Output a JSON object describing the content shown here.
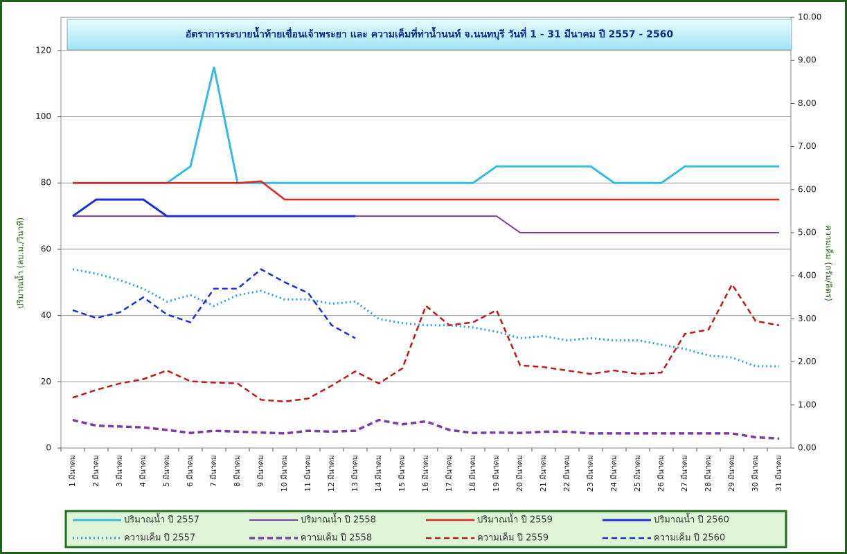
{
  "chart_data": {
    "type": "line",
    "title": "อัตราการระบายน้ำท้ายเขื่อนเจ้าพระยา และ ความเค็มที่ท่าน้ำนนท์ จ.นนทบุรี วันที่ 1 - 31 มีนาคม ปี 2557 - 2560",
    "y_label": "ปริมาณน้ำ (ลบ.ม./วินาที)",
    "y2_label": "ความเค็ม (กรัม/ลิตร)",
    "categories": [
      "1 มีนาคม",
      "2 มีนาคม",
      "3 มีนาคม",
      "4 มีนาคม",
      "5 มีนาคม",
      "6 มีนาคม",
      "7 มีนาคม",
      "8 มีนาคม",
      "9 มีนาคม",
      "10 มีนาคม",
      "11 มีนาคม",
      "12 มีนาคม",
      "13 มีนาคม",
      "14 มีนาคม",
      "15 มีนาคม",
      "16 มีนาคม",
      "17 มีนาคม",
      "18 มีนาคม",
      "19 มีนาคม",
      "20 มีนาคม",
      "21 มีนาคม",
      "22 มีนาคม",
      "23 มีนาคม",
      "24 มีนาคม",
      "25 มีนาคม",
      "26 มีนาคม",
      "27 มีนาคม",
      "28 มีนาคม",
      "29 มีนาคม",
      "30 มีนาคม",
      "31 มีนาคม"
    ],
    "ylim": [
      0,
      130
    ],
    "yticks": [
      0,
      20,
      40,
      60,
      80,
      100,
      120
    ],
    "y2lim": [
      0,
      10
    ],
    "y2ticks": [
      {
        "value": 0,
        "label": "0.00"
      },
      {
        "value": 1,
        "label": "1.00"
      },
      {
        "value": 2,
        "label": "2.00"
      },
      {
        "value": 3,
        "label": "3.00"
      },
      {
        "value": 4,
        "label": "4.00"
      },
      {
        "value": 5,
        "label": "5.00"
      },
      {
        "value": 6,
        "label": "6.00"
      },
      {
        "value": 7,
        "label": "7.00"
      },
      {
        "value": 8,
        "label": "8.00"
      },
      {
        "value": 9,
        "label": "9.00"
      },
      {
        "value": 10,
        "label": "10.00"
      }
    ],
    "grid": true,
    "legend": "bottom",
    "series": [
      {
        "name": "ปริมาณน้ำ ปี 2557",
        "color": "#33bbe8",
        "dash": "solid",
        "width": 3,
        "values": [
          80,
          80,
          80,
          80,
          80,
          85,
          115,
          80,
          80,
          80,
          80,
          80,
          80,
          80,
          80,
          80,
          80,
          80,
          85,
          85,
          85,
          85,
          85,
          80,
          80,
          80,
          85,
          85,
          85,
          85,
          85
        ]
      },
      {
        "name": "ปริมาณน้ำ ปี 2558",
        "color": "#7a3da8",
        "dash": "solid",
        "width": 2,
        "values": [
          70,
          70,
          70,
          70,
          70,
          70,
          70,
          70,
          70,
          70,
          70,
          70,
          70,
          70,
          70,
          70,
          70,
          70,
          70,
          65,
          65,
          65,
          65,
          65,
          65,
          65,
          65,
          65,
          65,
          65,
          65
        ]
      },
      {
        "name": "ปริมาณน้ำ ปี 2559",
        "color": "#e8201c",
        "dash": "solid",
        "width": 2.5,
        "values": [
          80,
          80,
          80,
          80,
          80,
          80,
          80,
          80,
          80.5,
          75,
          75,
          75,
          75,
          75,
          75,
          75,
          75,
          75,
          75,
          75,
          75,
          75,
          75,
          75,
          75,
          75,
          75,
          75,
          75,
          75,
          75
        ]
      },
      {
        "name": "ปริมาณน้ำ ปี 2560",
        "color": "#1a2ed8",
        "dash": "solid",
        "width": 3,
        "values": [
          70,
          75,
          75,
          75,
          70,
          70,
          70,
          70,
          70,
          70,
          70,
          70,
          70,
          null,
          null,
          null,
          null,
          null,
          null,
          null,
          null,
          null,
          null,
          null,
          null,
          null,
          null,
          null,
          null,
          null,
          null
        ]
      },
      {
        "name": "ความเค็ม ปี 2557",
        "color": "#2a9fd8",
        "dash": "dotted",
        "width": 3,
        "axis": "y2",
        "values": [
          4.15,
          4.05,
          3.9,
          3.7,
          3.4,
          3.55,
          3.3,
          3.55,
          3.65,
          3.45,
          3.45,
          3.35,
          3.4,
          3.0,
          2.9,
          2.85,
          2.85,
          2.8,
          2.7,
          2.55,
          2.6,
          2.5,
          2.55,
          2.5,
          2.5,
          2.4,
          2.3,
          2.15,
          2.1,
          1.9,
          1.9
        ]
      },
      {
        "name": "ความเค็ม ปี 2558",
        "color": "#7a3da8",
        "dash": "dashed",
        "width": 3.5,
        "axis": "y2",
        "values": [
          0.65,
          0.52,
          0.5,
          0.48,
          0.42,
          0.35,
          0.4,
          0.38,
          0.36,
          0.34,
          0.4,
          0.38,
          0.4,
          0.65,
          0.55,
          0.62,
          0.42,
          0.35,
          0.36,
          0.35,
          0.38,
          0.38,
          0.34,
          0.34,
          0.34,
          0.34,
          0.34,
          0.34,
          0.34,
          0.25,
          0.22
        ]
      },
      {
        "name": "ความเค็ม ปี 2559",
        "color": "#c01818",
        "dash": "dashed",
        "width": 2.5,
        "axis": "y2",
        "values": [
          1.17,
          1.35,
          1.5,
          1.6,
          1.8,
          1.55,
          1.52,
          1.5,
          1.12,
          1.08,
          1.15,
          1.45,
          1.78,
          1.5,
          1.85,
          3.3,
          2.85,
          2.92,
          3.2,
          1.92,
          1.88,
          1.8,
          1.72,
          1.8,
          1.72,
          1.75,
          2.65,
          2.75,
          3.8,
          2.95,
          2.85
        ]
      },
      {
        "name": "ความเค็ม ปี 2560",
        "color": "#1a2ed8",
        "dash": "dashed",
        "width": 2.5,
        "axis": "y2",
        "values": [
          3.2,
          3.02,
          3.15,
          3.5,
          3.1,
          2.92,
          3.7,
          3.7,
          4.15,
          3.85,
          3.6,
          2.85,
          2.55,
          null,
          null,
          null,
          null,
          null,
          null,
          null,
          null,
          null,
          null,
          null,
          null,
          null,
          null,
          null,
          null,
          null,
          null
        ]
      }
    ]
  }
}
